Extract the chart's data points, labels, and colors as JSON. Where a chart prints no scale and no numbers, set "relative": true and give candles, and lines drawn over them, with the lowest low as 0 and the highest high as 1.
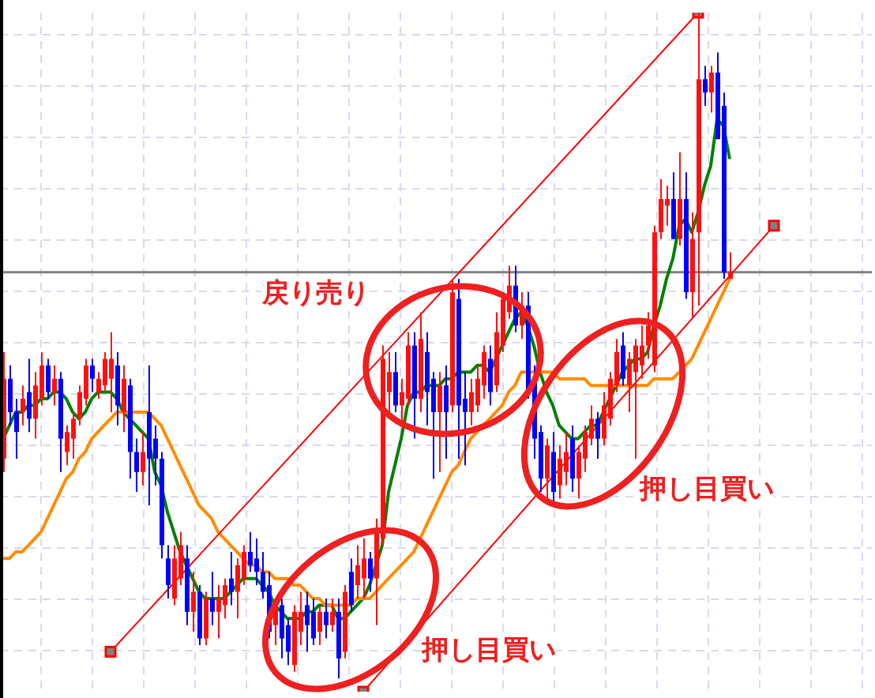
{
  "chart_data": {
    "type": "candlestick",
    "relative": true,
    "grid": true,
    "categories": [
      null,
      null,
      null,
      null,
      null,
      null,
      null,
      null,
      null,
      null,
      null,
      null,
      null,
      null,
      null,
      null,
      null,
      null,
      null,
      null,
      null,
      null,
      null,
      null,
      null,
      null,
      null,
      null,
      null,
      null,
      null,
      null,
      null,
      null,
      null,
      null,
      null,
      null,
      null,
      null,
      null,
      null,
      null,
      null,
      null,
      null,
      null,
      null,
      null,
      null,
      null,
      null,
      null,
      null,
      null,
      null,
      null,
      null,
      null,
      null,
      null,
      null,
      null,
      null,
      null,
      null,
      null,
      null,
      null,
      null,
      null,
      null,
      null,
      null,
      null,
      null,
      null,
      null,
      null,
      null,
      null,
      null,
      null,
      null,
      null,
      null,
      null,
      null,
      null,
      null,
      null,
      null,
      null,
      null,
      null,
      null,
      null,
      null,
      null,
      null,
      null,
      null,
      null,
      null,
      null,
      null,
      null,
      null,
      null,
      null,
      null,
      null,
      null,
      null,
      null,
      null,
      null,
      null,
      null,
      null,
      null,
      null,
      null,
      null,
      null,
      null,
      null,
      null,
      null,
      null,
      null,
      null,
      null,
      null,
      null,
      null,
      null,
      null
    ],
    "ohlc": [
      [
        0.33,
        0.49,
        0.31,
        0.45
      ],
      [
        0.45,
        0.47,
        0.38,
        0.4
      ],
      [
        0.4,
        0.42,
        0.33,
        0.37
      ],
      [
        0.4,
        0.44,
        0.38,
        0.42
      ],
      [
        0.43,
        0.48,
        0.37,
        0.39
      ],
      [
        0.39,
        0.46,
        0.36,
        0.44
      ],
      [
        0.42,
        0.49,
        0.41,
        0.47
      ],
      [
        0.47,
        0.48,
        0.42,
        0.43
      ],
      [
        0.43,
        0.47,
        0.41,
        0.45
      ],
      [
        0.45,
        0.46,
        0.31,
        0.36
      ],
      [
        0.34,
        0.38,
        0.32,
        0.37
      ],
      [
        0.36,
        0.4,
        0.33,
        0.39
      ],
      [
        0.39,
        0.44,
        0.38,
        0.43
      ],
      [
        0.42,
        0.48,
        0.41,
        0.47
      ],
      [
        0.47,
        0.48,
        0.43,
        0.45
      ],
      [
        0.43,
        0.46,
        0.42,
        0.45
      ],
      [
        0.44,
        0.49,
        0.43,
        0.48
      ],
      [
        0.45,
        0.52,
        0.4,
        0.48
      ],
      [
        0.47,
        0.49,
        0.38,
        0.41
      ],
      [
        0.4,
        0.47,
        0.37,
        0.45
      ],
      [
        0.44,
        0.45,
        0.3,
        0.34
      ],
      [
        0.34,
        0.36,
        0.28,
        0.31
      ],
      [
        0.31,
        0.37,
        0.29,
        0.34
      ],
      [
        0.4,
        0.47,
        0.26,
        0.33
      ],
      [
        0.36,
        0.38,
        0.29,
        0.33
      ],
      [
        0.33,
        0.34,
        0.18,
        0.2
      ],
      [
        0.18,
        0.2,
        0.12,
        0.14
      ],
      [
        0.12,
        0.2,
        0.11,
        0.18
      ],
      [
        0.15,
        0.22,
        0.14,
        0.2
      ],
      [
        0.18,
        0.2,
        0.08,
        0.1
      ],
      [
        0.1,
        0.16,
        0.07,
        0.13
      ],
      [
        0.13,
        0.14,
        0.05,
        0.06
      ],
      [
        0.06,
        0.13,
        0.05,
        0.12
      ],
      [
        0.12,
        0.16,
        0.08,
        0.1
      ],
      [
        0.1,
        0.14,
        0.06,
        0.12
      ],
      [
        0.11,
        0.15,
        0.09,
        0.14
      ],
      [
        0.15,
        0.19,
        0.11,
        0.13
      ],
      [
        0.13,
        0.18,
        0.09,
        0.17
      ],
      [
        0.15,
        0.2,
        0.14,
        0.19
      ],
      [
        0.19,
        0.22,
        0.16,
        0.17
      ],
      [
        0.18,
        0.21,
        0.14,
        0.16
      ],
      [
        0.16,
        0.19,
        0.12,
        0.13
      ],
      [
        0.14,
        0.16,
        0.06,
        0.07
      ],
      [
        0.08,
        0.12,
        0.05,
        0.11
      ],
      [
        0.11,
        0.12,
        0.03,
        0.06
      ],
      [
        0.08,
        0.09,
        0.02,
        0.04
      ],
      [
        0.02,
        0.11,
        0.01,
        0.1
      ],
      [
        0.07,
        0.13,
        0.05,
        0.1
      ],
      [
        0.11,
        0.13,
        0.04,
        0.08
      ],
      [
        0.1,
        0.12,
        0.05,
        0.06
      ],
      [
        0.07,
        0.11,
        0.05,
        0.1
      ],
      [
        0.1,
        0.12,
        0.06,
        0.08
      ],
      [
        0.08,
        0.12,
        0.07,
        0.1
      ],
      [
        0.1,
        0.12,
        0.0,
        0.03
      ],
      [
        0.04,
        0.14,
        0.03,
        0.13
      ],
      [
        0.16,
        0.18,
        0.1,
        0.11
      ],
      [
        0.14,
        0.2,
        0.12,
        0.17
      ],
      [
        0.15,
        0.21,
        0.12,
        0.18
      ],
      [
        0.18,
        0.19,
        0.13,
        0.15
      ],
      [
        0.15,
        0.24,
        0.08,
        0.22
      ],
      [
        0.21,
        0.5,
        0.2,
        0.48
      ],
      [
        0.43,
        0.49,
        0.4,
        0.46
      ],
      [
        0.46,
        0.49,
        0.4,
        0.41
      ],
      [
        0.41,
        0.45,
        0.38,
        0.43
      ],
      [
        0.42,
        0.52,
        0.41,
        0.5
      ],
      [
        0.5,
        0.52,
        0.36,
        0.42
      ],
      [
        0.42,
        0.55,
        0.4,
        0.51
      ],
      [
        0.49,
        0.52,
        0.38,
        0.43
      ],
      [
        0.45,
        0.46,
        0.3,
        0.4
      ],
      [
        0.4,
        0.46,
        0.31,
        0.44
      ],
      [
        0.44,
        0.47,
        0.33,
        0.4
      ],
      [
        0.41,
        0.6,
        0.4,
        0.58
      ],
      [
        0.57,
        0.6,
        0.33,
        0.41
      ],
      [
        0.42,
        0.46,
        0.32,
        0.4
      ],
      [
        0.4,
        0.45,
        0.38,
        0.43
      ],
      [
        0.41,
        0.47,
        0.4,
        0.45
      ],
      [
        0.44,
        0.5,
        0.42,
        0.49
      ],
      [
        0.48,
        0.5,
        0.41,
        0.43
      ],
      [
        0.44,
        0.55,
        0.43,
        0.52
      ],
      [
        0.5,
        0.58,
        0.49,
        0.57
      ],
      [
        0.55,
        0.62,
        0.54,
        0.59
      ],
      [
        0.59,
        0.62,
        0.52,
        0.53
      ],
      [
        0.53,
        0.58,
        0.51,
        0.56
      ],
      [
        0.56,
        0.58,
        0.42,
        0.43
      ],
      [
        0.45,
        0.47,
        0.33,
        0.36
      ],
      [
        0.37,
        0.38,
        0.28,
        0.3
      ],
      [
        0.3,
        0.36,
        0.27,
        0.35
      ],
      [
        0.34,
        0.37,
        0.26,
        0.28
      ],
      [
        0.29,
        0.35,
        0.27,
        0.33
      ],
      [
        0.31,
        0.37,
        0.29,
        0.34
      ],
      [
        0.36,
        0.38,
        0.28,
        0.3
      ],
      [
        0.3,
        0.35,
        0.27,
        0.34
      ],
      [
        0.33,
        0.38,
        0.31,
        0.37
      ],
      [
        0.36,
        0.41,
        0.35,
        0.39
      ],
      [
        0.39,
        0.4,
        0.33,
        0.36
      ],
      [
        0.36,
        0.43,
        0.35,
        0.41
      ],
      [
        0.39,
        0.46,
        0.38,
        0.45
      ],
      [
        0.44,
        0.51,
        0.43,
        0.49
      ],
      [
        0.5,
        0.52,
        0.44,
        0.45
      ],
      [
        0.44,
        0.49,
        0.4,
        0.48
      ],
      [
        0.46,
        0.51,
        0.33,
        0.5
      ],
      [
        0.47,
        0.53,
        0.45,
        0.5
      ],
      [
        0.5,
        0.55,
        0.48,
        0.53
      ],
      [
        0.47,
        0.68,
        0.46,
        0.67
      ],
      [
        0.67,
        0.75,
        0.66,
        0.72
      ],
      [
        0.71,
        0.74,
        0.68,
        0.72
      ],
      [
        0.72,
        0.76,
        0.66,
        0.66
      ],
      [
        0.66,
        0.79,
        0.65,
        0.72
      ],
      [
        0.72,
        0.76,
        0.57,
        0.58
      ],
      [
        0.58,
        0.7,
        0.54,
        0.66
      ],
      [
        0.67,
        1.0,
        0.56,
        0.9
      ],
      [
        0.9,
        0.92,
        0.86,
        0.88
      ],
      [
        0.88,
        0.92,
        0.85,
        0.91
      ],
      [
        0.91,
        0.94,
        0.81,
        0.81
      ],
      [
        0.86,
        0.88,
        0.6,
        0.61
      ],
      [
        0.6,
        0.64,
        0.6,
        0.61
      ],
      null,
      null,
      null,
      null,
      null,
      null,
      null,
      null,
      null,
      null,
      null,
      null,
      null,
      null,
      null,
      null,
      null,
      null,
      null,
      null,
      null,
      null
    ],
    "series": [
      {
        "type": "line",
        "color": "#008000",
        "values": [
          0.36,
          0.38,
          0.4,
          0.4,
          0.41,
          0.41,
          0.42,
          0.42,
          0.43,
          0.43,
          0.42,
          0.4,
          0.39,
          0.4,
          0.42,
          0.43,
          0.43,
          0.43,
          0.42,
          0.4,
          0.39,
          0.38,
          0.37,
          0.36,
          0.31,
          0.29,
          0.25,
          0.22,
          0.19,
          0.17,
          0.15,
          0.13,
          0.12,
          0.12,
          0.12,
          0.12,
          0.13,
          0.14,
          0.15,
          0.15,
          0.15,
          0.14,
          0.13,
          0.11,
          0.1,
          0.09,
          0.09,
          0.09,
          0.1,
          0.1,
          0.11,
          0.11,
          0.11,
          0.09,
          0.09,
          0.1,
          0.11,
          0.12,
          0.14,
          0.17,
          0.2,
          0.28,
          0.32,
          0.36,
          0.41,
          0.43,
          0.43,
          0.44,
          0.44,
          0.44,
          0.45,
          0.45,
          0.46,
          0.46,
          0.46,
          0.47,
          0.47,
          0.46,
          0.48,
          0.5,
          0.52,
          0.54,
          0.55,
          0.53,
          0.5,
          0.46,
          0.43,
          0.41,
          0.38,
          0.37,
          0.36,
          0.36,
          0.37,
          0.38,
          0.38,
          0.4,
          0.42,
          0.44,
          0.46,
          0.47,
          0.48,
          0.48,
          0.49,
          0.53,
          0.56,
          0.6,
          0.63,
          0.68,
          0.69,
          0.67,
          0.7,
          0.74,
          0.77,
          0.84,
          0.83,
          0.78,
          null,
          null,
          null,
          null,
          null,
          null,
          null,
          null,
          null,
          null,
          null,
          null,
          null,
          null,
          null,
          null,
          null,
          null,
          null,
          null,
          null,
          null
        ]
      },
      {
        "type": "line",
        "color": "#ff8c00",
        "values": [
          0.18,
          0.18,
          0.19,
          0.19,
          0.2,
          0.21,
          0.22,
          0.24,
          0.26,
          0.28,
          0.3,
          0.31,
          0.33,
          0.34,
          0.36,
          0.37,
          0.38,
          0.39,
          0.4,
          0.4,
          0.4,
          0.4,
          0.4,
          0.4,
          0.39,
          0.38,
          0.36,
          0.34,
          0.32,
          0.3,
          0.28,
          0.26,
          0.25,
          0.24,
          0.22,
          0.21,
          0.2,
          0.19,
          0.18,
          0.17,
          0.17,
          0.16,
          0.16,
          0.15,
          0.15,
          0.15,
          0.14,
          0.14,
          0.13,
          0.12,
          0.12,
          0.11,
          0.11,
          0.11,
          0.11,
          0.11,
          0.12,
          0.12,
          0.12,
          0.13,
          0.14,
          0.15,
          0.16,
          0.17,
          0.18,
          0.19,
          0.21,
          0.23,
          0.25,
          0.27,
          0.29,
          0.31,
          0.32,
          0.34,
          0.36,
          0.37,
          0.38,
          0.39,
          0.4,
          0.41,
          0.43,
          0.44,
          0.46,
          0.46,
          0.46,
          0.46,
          0.46,
          0.46,
          0.45,
          0.45,
          0.45,
          0.45,
          0.45,
          0.44,
          0.44,
          0.44,
          0.44,
          0.44,
          0.44,
          0.44,
          0.44,
          0.44,
          0.44,
          0.45,
          0.45,
          0.45,
          0.45,
          0.46,
          0.47,
          0.48,
          0.5,
          0.52,
          0.54,
          0.56,
          0.58,
          0.6,
          null,
          null,
          null,
          null,
          null,
          null,
          null,
          null,
          null,
          null,
          null,
          null,
          null,
          null,
          null,
          null,
          null,
          null,
          null,
          null,
          null,
          null
        ]
      },
      {
        "type": "line",
        "color": "#ff0000",
        "marker": "square",
        "values": [
          null,
          null,
          null,
          null,
          null,
          null,
          null,
          null,
          null,
          null,
          null,
          null,
          null,
          null,
          null,
          null,
          null,
          0.04,
          null,
          null,
          null,
          null,
          null,
          null,
          null,
          null,
          null,
          null,
          null,
          null,
          null,
          null,
          null,
          null,
          null,
          null,
          null,
          null,
          null,
          null,
          null,
          null,
          null,
          null,
          null,
          null,
          null,
          null,
          null,
          null,
          null,
          null,
          null,
          null,
          null,
          null,
          null,
          null,
          null,
          null,
          null,
          null,
          null,
          null,
          null,
          null,
          null,
          null,
          null,
          null,
          null,
          null,
          null,
          null,
          null,
          null,
          null,
          null,
          null,
          null,
          null,
          null,
          null,
          null,
          null,
          null,
          null,
          null,
          null,
          null,
          null,
          null,
          null,
          null,
          null,
          null,
          null,
          null,
          null,
          null,
          null,
          null,
          null,
          null,
          null,
          null,
          null,
          null,
          null,
          null,
          1.0,
          null,
          null,
          null,
          null,
          null,
          null,
          null,
          null,
          null,
          null,
          null,
          null,
          null,
          null,
          null,
          null,
          null,
          null,
          null,
          null,
          null,
          null,
          null,
          null,
          null,
          null,
          null
        ]
      },
      {
        "type": "line",
        "color": "#ff0000",
        "marker": "square",
        "values": [
          null,
          null,
          null,
          null,
          null,
          null,
          null,
          null,
          null,
          null,
          null,
          null,
          null,
          null,
          null,
          null,
          null,
          null,
          null,
          null,
          null,
          null,
          null,
          null,
          null,
          null,
          null,
          null,
          null,
          null,
          null,
          null,
          null,
          null,
          null,
          null,
          null,
          null,
          null,
          null,
          null,
          null,
          null,
          null,
          null,
          null,
          null,
          null,
          null,
          null,
          null,
          null,
          null,
          null,
          null,
          null,
          null,
          -0.02,
          null,
          null,
          null,
          null,
          null,
          null,
          null,
          null,
          null,
          null,
          null,
          null,
          null,
          null,
          null,
          null,
          null,
          null,
          null,
          null,
          null,
          null,
          null,
          null,
          null,
          null,
          null,
          null,
          null,
          null,
          null,
          null,
          null,
          null,
          null,
          null,
          null,
          null,
          null,
          null,
          null,
          null,
          null,
          null,
          null,
          null,
          null,
          null,
          null,
          null,
          null,
          null,
          null,
          null,
          null,
          null,
          null,
          null,
          null,
          null,
          null,
          null,
          null,
          null,
          0.68,
          null,
          null,
          null,
          null,
          null,
          null,
          null,
          null,
          null,
          null,
          null,
          null,
          null,
          null,
          null
        ]
      }
    ],
    "ref_lines": [
      {
        "axis": "y",
        "value": 0.61,
        "color": "#808080"
      }
    ],
    "annotations": [
      "戻り売り",
      "押し目買い",
      "押し目買い"
    ]
  }
}
